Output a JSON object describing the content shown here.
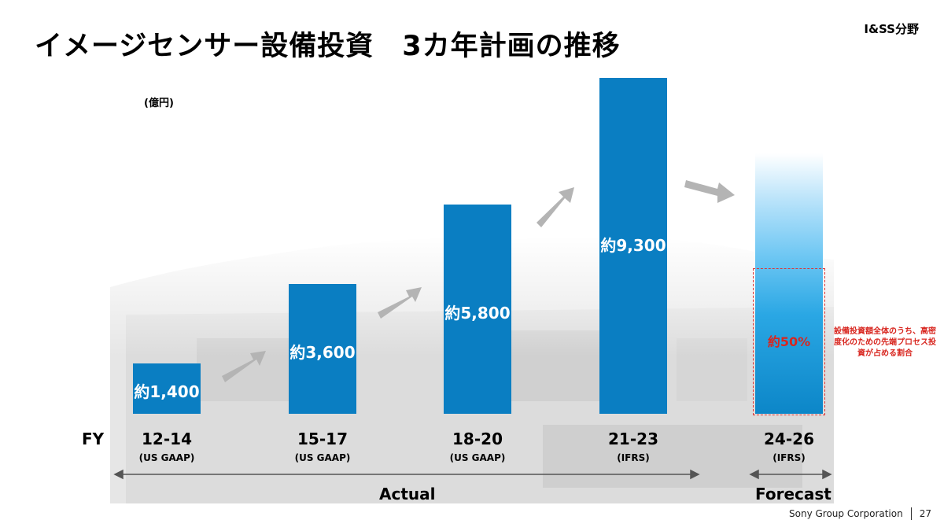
{
  "title": "イメージセンサー設備投資　3カ年計画の推移",
  "segment": "I&SS分野",
  "footer": {
    "company": "Sony Group Corporation",
    "page": "27"
  },
  "fy_label": "FY",
  "periods": {
    "actual": "Actual",
    "forecast": "Forecast"
  },
  "note": "設備投資額全体のうち、高密度化のための先端プロセス投資が占める割合",
  "forecast_share_label": "約50%",
  "colors": {
    "bar": "#0a7ec2",
    "forecast_bar": "#2aa7e4",
    "accent_red": "#d8261f",
    "arrow": "#b4b4b4"
  },
  "chart_data": {
    "type": "bar",
    "unit_label": "(億円)",
    "categories": [
      "12-14",
      "15-17",
      "18-20",
      "21-23",
      "24-26"
    ],
    "category_sublabels": [
      "(US GAAP)",
      "(US GAAP)",
      "(US GAAP)",
      "(IFRS)",
      "(IFRS)"
    ],
    "values": [
      1400,
      3600,
      5800,
      9300,
      null
    ],
    "value_labels": [
      "約1,400",
      "約3,600",
      "約5,800",
      "約9,300",
      ""
    ],
    "ylim": [
      0,
      9300
    ],
    "forecast_share_percent": 50
  }
}
